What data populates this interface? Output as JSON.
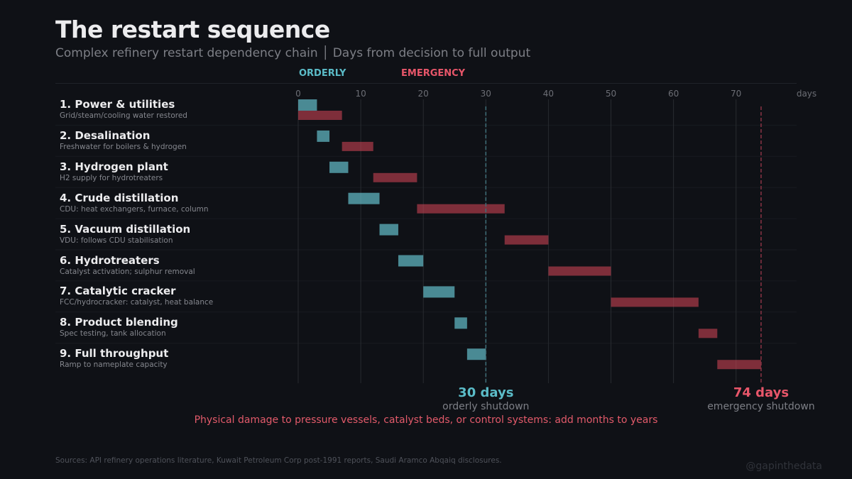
{
  "title": "The restart sequence",
  "subtitle": "Complex refinery restart dependency chain │ Days from decision to full output",
  "chart_data": {
    "type": "gantt",
    "title": "The restart sequence",
    "xlabel": "days",
    "xlim": [
      0,
      80
    ],
    "xticks": [
      0,
      10,
      20,
      30,
      40,
      50,
      60,
      70
    ],
    "grid": true,
    "legend": {
      "placement": "top",
      "entries": [
        "ORDERLY",
        "EMERGENCY"
      ]
    },
    "colors": {
      "orderly": "#4a8a94",
      "emergency": "#7e2e3a",
      "orderly_text": "#5bbcc8",
      "emergency_text": "#e8566a"
    },
    "tasks": [
      {
        "label": "1. Power & utilities",
        "sub": "Grid/steam/cooling water restored",
        "orderly": [
          0,
          3
        ],
        "emergency": [
          0,
          7
        ]
      },
      {
        "label": "2. Desalination",
        "sub": "Freshwater for boilers & hydrogen",
        "orderly": [
          3,
          5
        ],
        "emergency": [
          7,
          12
        ]
      },
      {
        "label": "3. Hydrogen plant",
        "sub": "H2 supply for hydrotreaters",
        "orderly": [
          5,
          8
        ],
        "emergency": [
          12,
          19
        ]
      },
      {
        "label": "4. Crude distillation",
        "sub": "CDU: heat exchangers, furnace, column",
        "orderly": [
          8,
          13
        ],
        "emergency": [
          19,
          33
        ]
      },
      {
        "label": "5. Vacuum distillation",
        "sub": "VDU: follows CDU stabilisation",
        "orderly": [
          13,
          16
        ],
        "emergency": [
          33,
          40
        ]
      },
      {
        "label": "6. Hydrotreaters",
        "sub": "Catalyst activation; sulphur removal",
        "orderly": [
          16,
          20
        ],
        "emergency": [
          40,
          50
        ]
      },
      {
        "label": "7. Catalytic cracker",
        "sub": "FCC/hydrocracker: catalyst, heat balance",
        "orderly": [
          20,
          25
        ],
        "emergency": [
          50,
          64
        ]
      },
      {
        "label": "8. Product blending",
        "sub": "Spec testing, tank allocation",
        "orderly": [
          25,
          27
        ],
        "emergency": [
          64,
          67
        ]
      },
      {
        "label": "9. Full throughput",
        "sub": "Ramp to nameplate capacity",
        "orderly": [
          27,
          30
        ],
        "emergency": [
          67,
          74
        ]
      }
    ],
    "markers": [
      {
        "value": 30,
        "label": "30 days",
        "caption": "orderly shutdown",
        "series": "orderly"
      },
      {
        "value": 74,
        "label": "74 days",
        "caption": "emergency shutdown",
        "series": "emergency"
      }
    ],
    "annotation": "Physical damage to pressure vessels, catalyst beds, or control systems: add months to years"
  },
  "sources": "Sources: API refinery operations literature, Kuwait Petroleum Corp post-1991 reports, Saudi Aramco Abqaiq disclosures.",
  "handle": "@gapinthedata"
}
